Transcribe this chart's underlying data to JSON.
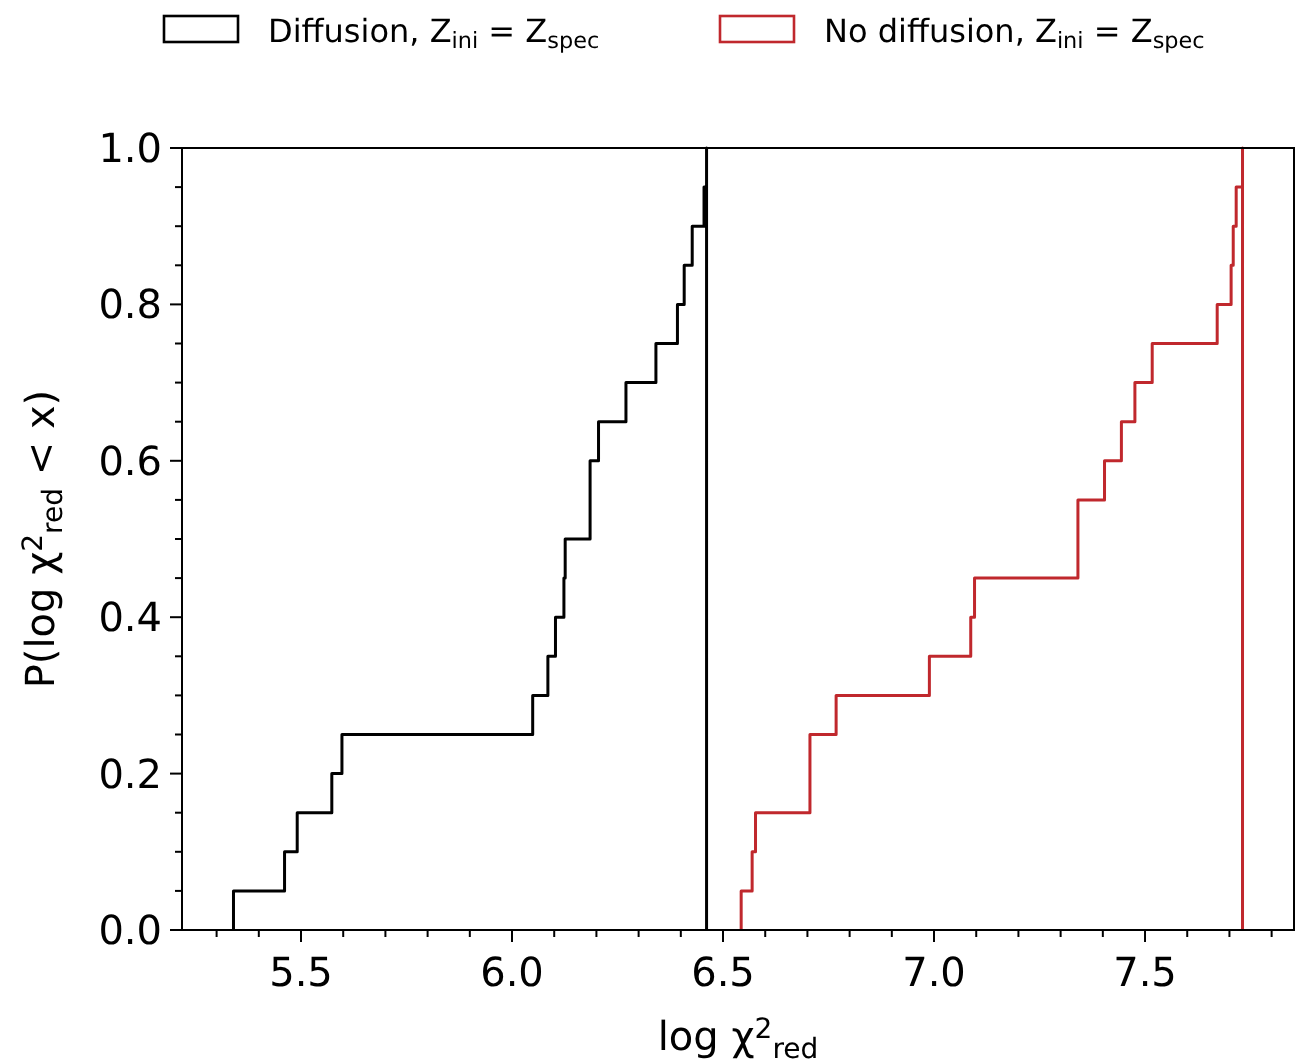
{
  "chart_data": {
    "type": "step",
    "xlabel": "log χ$^{2}$$_{red}$",
    "ylabel": "P(log χ$^{2}$$_{red}$ < x)",
    "legend": "top",
    "grid": false,
    "line_style": "solid",
    "xlim": [
      5.218,
      7.853
    ],
    "xticks": [
      {
        "value": 5.3,
        "label": null
      },
      {
        "value": 5.4,
        "label": null
      },
      5.5,
      {
        "value": 5.6,
        "label": null
      },
      {
        "value": 5.7,
        "label": null
      },
      {
        "value": 5.8,
        "label": null
      },
      {
        "value": 5.9,
        "label": null
      },
      {
        "value": 6.0,
        "label": "6.0"
      },
      {
        "value": 6.1,
        "label": null
      },
      {
        "value": 6.2,
        "label": null
      },
      {
        "value": 6.3,
        "label": null
      },
      {
        "value": 6.4,
        "label": null
      },
      6.5,
      {
        "value": 6.6,
        "label": null
      },
      {
        "value": 6.7,
        "label": null
      },
      {
        "value": 6.8,
        "label": null
      },
      {
        "value": 6.9,
        "label": null
      },
      {
        "value": 7.0,
        "label": "7.0"
      },
      {
        "value": 7.1,
        "label": null
      },
      {
        "value": 7.2,
        "label": null
      },
      {
        "value": 7.3,
        "label": null
      },
      {
        "value": 7.4,
        "label": null
      },
      7.5,
      {
        "value": 7.6,
        "label": null
      },
      {
        "value": 7.7,
        "label": null
      },
      {
        "value": 7.8,
        "label": null
      }
    ],
    "ylim": [
      0,
      1
    ],
    "yticks": [
      {
        "value": 0,
        "label": "0.0"
      },
      {
        "value": 0.05,
        "label": null
      },
      0.2,
      {
        "value": 0.1,
        "label": null
      },
      {
        "value": 0.15,
        "label": null
      },
      {
        "value": 0.25,
        "label": null
      },
      {
        "value": 0.3,
        "label": null
      },
      {
        "value": 0.35,
        "label": null
      },
      0.4,
      {
        "value": 0.45,
        "label": null
      },
      {
        "value": 0.5,
        "label": null
      },
      {
        "value": 0.55,
        "label": null
      },
      0.6,
      {
        "value": 0.65,
        "label": null
      },
      {
        "value": 0.7,
        "label": null
      },
      {
        "value": 0.75,
        "label": null
      },
      0.8,
      {
        "value": 0.85,
        "label": null
      },
      {
        "value": 0.9,
        "label": null
      },
      {
        "value": 0.95,
        "label": null
      },
      {
        "value": 1,
        "label": "1.0"
      }
    ],
    "series": [
      {
        "name": "Diffusion, Z$_{ini}$ = Z$_{spec}$",
        "color": "#000000",
        "x": [
          5.34,
          5.34,
          5.461,
          5.491,
          5.573,
          5.597,
          6.049,
          6.085,
          6.103,
          6.123,
          6.126,
          6.185,
          6.205,
          6.27,
          6.341,
          6.392,
          6.408,
          6.427,
          6.455,
          6.461,
          6.461
        ],
        "values": [
          0,
          0.05,
          0.1,
          0.15,
          0.2,
          0.25,
          0.3,
          0.35,
          0.4,
          0.45,
          0.5,
          0.6,
          0.65,
          0.7,
          0.75,
          0.8,
          0.85,
          0.9,
          0.95,
          1,
          0
        ]
      },
      {
        "name": "No diffusion, Z$_{ini}$ = Z$_{spec}$",
        "color": "#c0282d",
        "x": [
          6.543,
          6.543,
          6.569,
          6.577,
          6.706,
          6.768,
          6.989,
          7.087,
          7.096,
          7.341,
          7.404,
          7.444,
          7.476,
          7.517,
          7.671,
          7.704,
          7.709,
          7.716,
          7.731,
          7.731
        ],
        "values": [
          0,
          0.05,
          0.1,
          0.15,
          0.25,
          0.3,
          0.35,
          0.4,
          0.45,
          0.55,
          0.6,
          0.65,
          0.7,
          0.75,
          0.8,
          0.85,
          0.9,
          0.95,
          1,
          0
        ]
      }
    ]
  }
}
